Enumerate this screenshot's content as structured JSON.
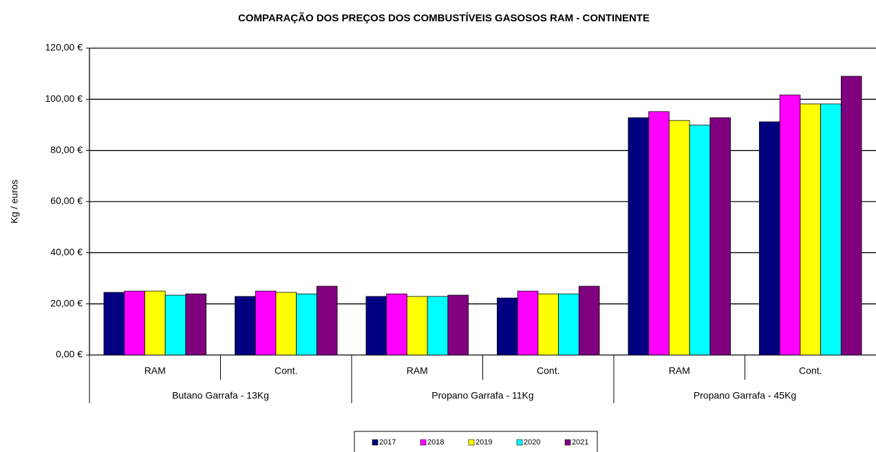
{
  "chart_data": {
    "type": "bar",
    "title": "COMPARAÇÃO DOS PREÇOS DOS COMBUSTÍVEIS GASOSOS  RAM - CONTINENTE",
    "y_label": "Kg / euros",
    "categories": [
      "RAM",
      "Cont.",
      "RAM",
      "Cont.",
      "RAM",
      "Cont."
    ],
    "category_groups": [
      "Butano Garrafa - 13Kg",
      "Propano Garrafa - 11Kg",
      "Propano Garrafa - 45Kg"
    ],
    "series": [
      {
        "name": "2017",
        "color": "#000080",
        "values": [
          24.5,
          22.9,
          22.9,
          22.3,
          92.8,
          91.2
        ]
      },
      {
        "name": "2018",
        "color": "#ff00ff",
        "values": [
          25.0,
          25.0,
          23.9,
          25.0,
          95.2,
          101.7
        ]
      },
      {
        "name": "2019",
        "color": "#ffff00",
        "values": [
          25.0,
          24.5,
          22.9,
          23.9,
          91.7,
          98.2
        ]
      },
      {
        "name": "2020",
        "color": "#00ffff",
        "values": [
          23.4,
          23.9,
          22.9,
          23.9,
          89.9,
          98.2
        ]
      },
      {
        "name": "2021",
        "color": "#800080",
        "values": [
          23.9,
          26.9,
          23.4,
          26.9,
          92.8,
          109.0
        ]
      }
    ],
    "ylim": [
      0,
      120
    ],
    "yticks": [
      {
        "value": 0,
        "label": "0,00 €"
      },
      {
        "value": 20,
        "label": "20,00 €"
      },
      {
        "value": 40,
        "label": "40,00 €"
      },
      {
        "value": 60,
        "label": "60,00 €"
      },
      {
        "value": 80,
        "label": "80,00 €"
      },
      {
        "value": 100,
        "label": "100,00 €"
      },
      {
        "value": 120,
        "label": "120,00 €"
      }
    ],
    "grid": true,
    "legend": "bottom"
  }
}
